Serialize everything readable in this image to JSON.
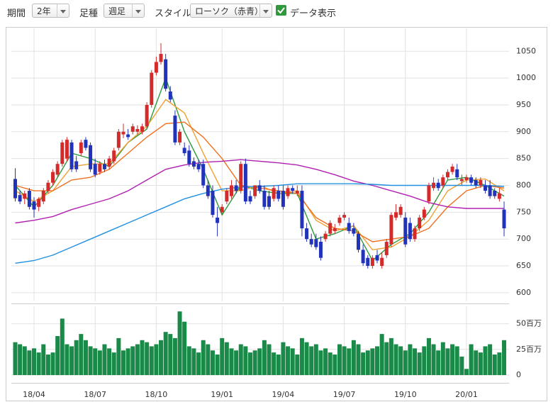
{
  "toolbar": {
    "period_label": "期間",
    "period": "2年",
    "kind_label": "足種",
    "kind": "週足",
    "style_label": "スタイル",
    "style": "ローソク（赤青）",
    "show_data": "データ表示"
  },
  "chart_data": {
    "type": "candlestick",
    "categories": [
      null,
      null,
      null,
      null,
      "18/04",
      null,
      null,
      null,
      null,
      null,
      null,
      null,
      null,
      null,
      null,
      null,
      null,
      "18/07",
      null,
      null,
      null,
      null,
      null,
      null,
      null,
      null,
      null,
      null,
      null,
      null,
      "18/10",
      null,
      null,
      null,
      null,
      null,
      null,
      null,
      null,
      null,
      null,
      null,
      null,
      null,
      "19/01",
      null,
      null,
      null,
      null,
      null,
      null,
      null,
      null,
      null,
      null,
      null,
      null,
      "19/04",
      null,
      null,
      null,
      null,
      null,
      null,
      null,
      null,
      null,
      null,
      null,
      null,
      "19/07",
      null,
      null,
      null,
      null,
      null,
      null,
      null,
      null,
      null,
      null,
      null,
      null,
      "19/10",
      null,
      null,
      null,
      null,
      null,
      null,
      null,
      null,
      null,
      null,
      null,
      null,
      "20/01",
      null,
      null,
      null,
      null,
      null,
      null,
      null,
      null
    ],
    "open": [
      812,
      782,
      775,
      790,
      770,
      760,
      770,
      790,
      805,
      820,
      840,
      850,
      880,
      845,
      860,
      885,
      875,
      840,
      825,
      840,
      835,
      845,
      870,
      895,
      895,
      900,
      900,
      900,
      910,
      950,
      1010,
      1030,
      1035,
      975,
      930,
      880,
      870,
      865,
      845,
      840,
      840,
      800,
      790,
      740,
      750,
      770,
      780,
      800,
      790,
      840,
      780,
      780,
      800,
      790,
      780,
      775,
      790,
      790,
      780,
      795,
      785,
      790,
      720,
      700,
      700,
      695,
      700,
      710,
      715,
      730,
      740,
      730,
      720,
      710,
      680,
      665,
      650,
      670,
      650,
      670,
      690,
      740,
      745,
      740,
      730,
      700,
      720,
      740,
      770,
      795,
      805,
      800,
      815,
      825,
      830,
      808,
      810,
      815,
      810,
      800,
      800,
      800,
      790,
      775,
      755
    ],
    "high": [
      832,
      790,
      790,
      795,
      778,
      778,
      795,
      810,
      830,
      845,
      885,
      890,
      885,
      855,
      885,
      890,
      880,
      850,
      845,
      848,
      855,
      870,
      905,
      915,
      905,
      915,
      912,
      915,
      955,
      1015,
      1040,
      1065,
      1045,
      985,
      940,
      905,
      880,
      875,
      852,
      848,
      848,
      810,
      800,
      760,
      765,
      795,
      810,
      810,
      845,
      850,
      790,
      800,
      810,
      800,
      790,
      800,
      800,
      800,
      800,
      800,
      800,
      800,
      730,
      710,
      710,
      705,
      715,
      735,
      728,
      745,
      750,
      740,
      730,
      715,
      690,
      670,
      670,
      680,
      675,
      700,
      750,
      765,
      765,
      750,
      740,
      725,
      745,
      760,
      805,
      815,
      812,
      820,
      830,
      840,
      840,
      820,
      820,
      820,
      815,
      815,
      810,
      810,
      795,
      795,
      770
    ],
    "low": [
      770,
      765,
      765,
      755,
      740,
      752,
      765,
      785,
      800,
      815,
      835,
      845,
      825,
      825,
      855,
      865,
      825,
      815,
      820,
      825,
      830,
      840,
      865,
      888,
      885,
      895,
      895,
      895,
      905,
      945,
      1005,
      1025,
      975,
      955,
      875,
      875,
      855,
      835,
      830,
      825,
      795,
      775,
      740,
      705,
      745,
      765,
      775,
      785,
      785,
      765,
      765,
      775,
      785,
      755,
      755,
      770,
      770,
      755,
      775,
      785,
      780,
      705,
      695,
      685,
      680,
      660,
      695,
      705,
      710,
      725,
      735,
      710,
      705,
      675,
      650,
      645,
      645,
      655,
      645,
      665,
      685,
      735,
      740,
      685,
      695,
      695,
      715,
      735,
      765,
      790,
      790,
      795,
      810,
      820,
      810,
      800,
      805,
      800,
      795,
      795,
      785,
      775,
      775,
      770,
      705
    ],
    "close": [
      776,
      770,
      785,
      760,
      755,
      775,
      790,
      805,
      825,
      840,
      880,
      885,
      830,
      830,
      880,
      870,
      830,
      820,
      840,
      830,
      850,
      865,
      900,
      900,
      890,
      910,
      905,
      910,
      950,
      1010,
      1030,
      1045,
      980,
      960,
      880,
      900,
      860,
      840,
      835,
      830,
      800,
      780,
      745,
      730,
      760,
      790,
      800,
      790,
      840,
      770,
      770,
      800,
      790,
      760,
      760,
      795,
      775,
      760,
      795,
      790,
      790,
      720,
      700,
      690,
      685,
      665,
      710,
      730,
      720,
      740,
      745,
      715,
      710,
      680,
      655,
      650,
      665,
      660,
      665,
      695,
      745,
      750,
      760,
      690,
      700,
      720,
      740,
      755,
      800,
      805,
      795,
      815,
      825,
      835,
      815,
      812,
      815,
      805,
      800,
      810,
      790,
      780,
      780,
      785,
      720
    ],
    "up_color": "#d42a2a",
    "down_color": "#2233bb",
    "series": [
      {
        "color": "#2e9a3c",
        "x": [
          0,
          4,
          8,
          12,
          16,
          20,
          24,
          28,
          32,
          36,
          40,
          44,
          48,
          52,
          56,
          60,
          64,
          68,
          72,
          76,
          80,
          84,
          88,
          92,
          96,
          100,
          104
        ],
        "values": [
          800,
          760,
          800,
          860,
          850,
          835,
          880,
          905,
          1000,
          900,
          830,
          745,
          800,
          790,
          785,
          785,
          700,
          710,
          725,
          660,
          690,
          710,
          750,
          810,
          815,
          800,
          780
        ]
      },
      {
        "color": "#f0a030",
        "x": [
          0,
          4,
          8,
          12,
          16,
          20,
          24,
          28,
          32,
          36,
          40,
          44,
          48,
          52,
          56,
          60,
          64,
          68,
          72,
          76,
          80,
          84,
          88,
          92,
          96,
          100,
          104
        ],
        "values": [
          790,
          770,
          790,
          835,
          840,
          840,
          880,
          910,
          960,
          935,
          860,
          790,
          790,
          800,
          785,
          790,
          735,
          715,
          725,
          680,
          685,
          705,
          735,
          790,
          810,
          812,
          790
        ]
      },
      {
        "color": "#f07020",
        "x": [
          0,
          4,
          8,
          12,
          16,
          20,
          24,
          28,
          32,
          36,
          40,
          44,
          48,
          52,
          56,
          60,
          64,
          68,
          72,
          76,
          80,
          84,
          88,
          92,
          96,
          100,
          104
        ],
        "values": [
          800,
          790,
          790,
          810,
          815,
          830,
          860,
          890,
          915,
          918,
          890,
          850,
          800,
          795,
          790,
          785,
          740,
          720,
          715,
          695,
          700,
          705,
          720,
          760,
          790,
          800,
          795
        ]
      },
      {
        "color": "#b020b0",
        "x": [
          0,
          4,
          8,
          12,
          16,
          20,
          24,
          28,
          32,
          36,
          40,
          44,
          48,
          52,
          56,
          60,
          64,
          68,
          72,
          76,
          80,
          84,
          88,
          92,
          96,
          100,
          104
        ],
        "values": [
          730,
          735,
          742,
          755,
          765,
          775,
          790,
          810,
          830,
          838,
          843,
          845,
          848,
          845,
          842,
          838,
          830,
          820,
          808,
          800,
          790,
          780,
          768,
          760,
          757,
          757,
          757
        ]
      },
      {
        "color": "#2090e0",
        "x": [
          0,
          4,
          8,
          12,
          16,
          20,
          24,
          28,
          32,
          36,
          40,
          44,
          48,
          52,
          56,
          60,
          64,
          68,
          72,
          76,
          80,
          84,
          88,
          92,
          96,
          100,
          104
        ],
        "values": [
          655,
          660,
          670,
          685,
          700,
          715,
          730,
          745,
          760,
          775,
          785,
          793,
          797,
          798,
          800,
          803,
          803,
          803,
          803,
          802,
          800,
          800,
          800,
          800,
          800,
          800,
          798
        ]
      }
    ],
    "ylim": [
      584,
      1086
    ],
    "yticks": [
      600,
      650,
      700,
      750,
      800,
      850,
      900,
      950,
      1000,
      1050
    ],
    "grid": true,
    "volume": {
      "color": "#1a8a48",
      "ylim": [
        0,
        67
      ],
      "yticks": [
        0,
        {
          "value": 25,
          "label": "25百万"
        },
        {
          "value": 50,
          "label": "50百万"
        }
      ],
      "values": [
        32,
        30,
        28,
        24,
        26,
        22,
        30,
        20,
        22,
        38,
        55,
        30,
        28,
        34,
        40,
        34,
        28,
        26,
        24,
        30,
        26,
        22,
        36,
        24,
        26,
        28,
        30,
        34,
        32,
        28,
        30,
        34,
        42,
        40,
        36,
        62,
        52,
        28,
        26,
        22,
        34,
        30,
        24,
        20,
        36,
        32,
        26,
        24,
        30,
        28,
        22,
        24,
        26,
        34,
        30,
        22,
        20,
        32,
        28,
        26,
        20,
        36,
        32,
        28,
        30,
        24,
        26,
        22,
        20,
        30,
        28,
        26,
        34,
        30,
        22,
        24,
        26,
        28,
        40,
        32,
        36,
        30,
        28,
        24,
        30,
        26,
        22,
        28,
        36,
        30,
        24,
        32,
        26,
        30,
        28,
        18,
        6,
        30,
        24,
        22,
        28,
        30,
        20,
        22,
        34
      ]
    }
  }
}
